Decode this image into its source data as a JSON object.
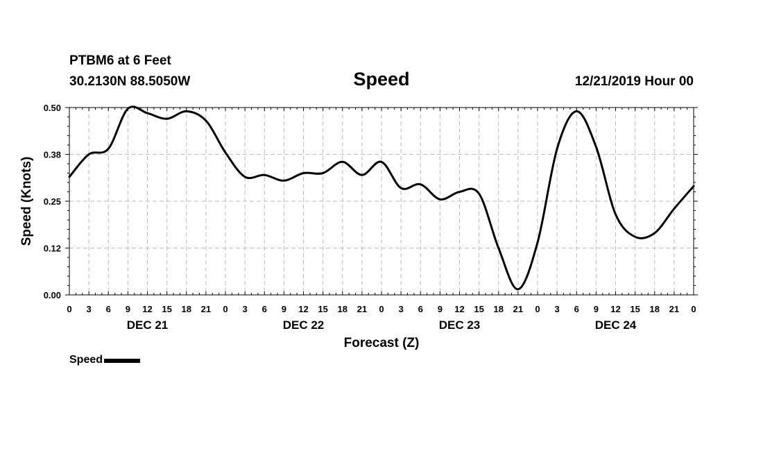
{
  "header": {
    "station": "PTBM6 at 6 Feet",
    "coords": "30.2130N 88.5050W",
    "run": "12/21/2019 Hour 00"
  },
  "legend": {
    "label": "Speed"
  },
  "colors": {
    "line": "#000000",
    "grid": "#bbbbbb",
    "background": "#ffffff"
  },
  "chart_data": {
    "type": "line",
    "title": "Speed",
    "xlabel": "Forecast (Z)",
    "ylabel": "Speed (Knots)",
    "grid": true,
    "legend_position": "bottom-left",
    "xlim": [
      0,
      96
    ],
    "ylim": [
      0,
      0.5
    ],
    "yticks": [
      0,
      0.125,
      0.25,
      0.375,
      0.5
    ],
    "ytick_labels": [
      "0.00",
      "0.12",
      "0.25",
      "0.38",
      "0.50"
    ],
    "xticks": [
      0,
      3,
      6,
      9,
      12,
      15,
      18,
      21,
      24,
      27,
      30,
      33,
      36,
      39,
      42,
      45,
      48,
      51,
      54,
      57,
      60,
      63,
      66,
      69,
      72,
      75,
      78,
      81,
      84,
      87,
      90,
      93,
      96
    ],
    "xtick_labels": [
      "0",
      "3",
      "6",
      "9",
      "12",
      "15",
      "18",
      "21",
      "0",
      "3",
      "6",
      "9",
      "12",
      "15",
      "18",
      "21",
      "0",
      "3",
      "6",
      "9",
      "12",
      "15",
      "18",
      "21",
      "0",
      "3",
      "6",
      "9",
      "12",
      "15",
      "18",
      "21",
      "0"
    ],
    "day_labels": [
      {
        "label": "DEC 21",
        "x": 12
      },
      {
        "label": "DEC 22",
        "x": 36
      },
      {
        "label": "DEC 23",
        "x": 60
      },
      {
        "label": "DEC 24",
        "x": 84
      }
    ],
    "series": [
      {
        "name": "Speed",
        "x": [
          0,
          3,
          6,
          9,
          12,
          15,
          18,
          21,
          24,
          27,
          30,
          33,
          36,
          39,
          42,
          45,
          48,
          51,
          54,
          57,
          60,
          63,
          66,
          69,
          72,
          75,
          78,
          81,
          84,
          87,
          90,
          93,
          96
        ],
        "values": [
          0.315,
          0.375,
          0.39,
          0.497,
          0.485,
          0.47,
          0.49,
          0.465,
          0.38,
          0.315,
          0.32,
          0.305,
          0.325,
          0.325,
          0.355,
          0.32,
          0.355,
          0.285,
          0.295,
          0.255,
          0.275,
          0.27,
          0.125,
          0.015,
          0.14,
          0.39,
          0.49,
          0.395,
          0.215,
          0.155,
          0.165,
          0.23,
          0.29
        ]
      }
    ]
  }
}
